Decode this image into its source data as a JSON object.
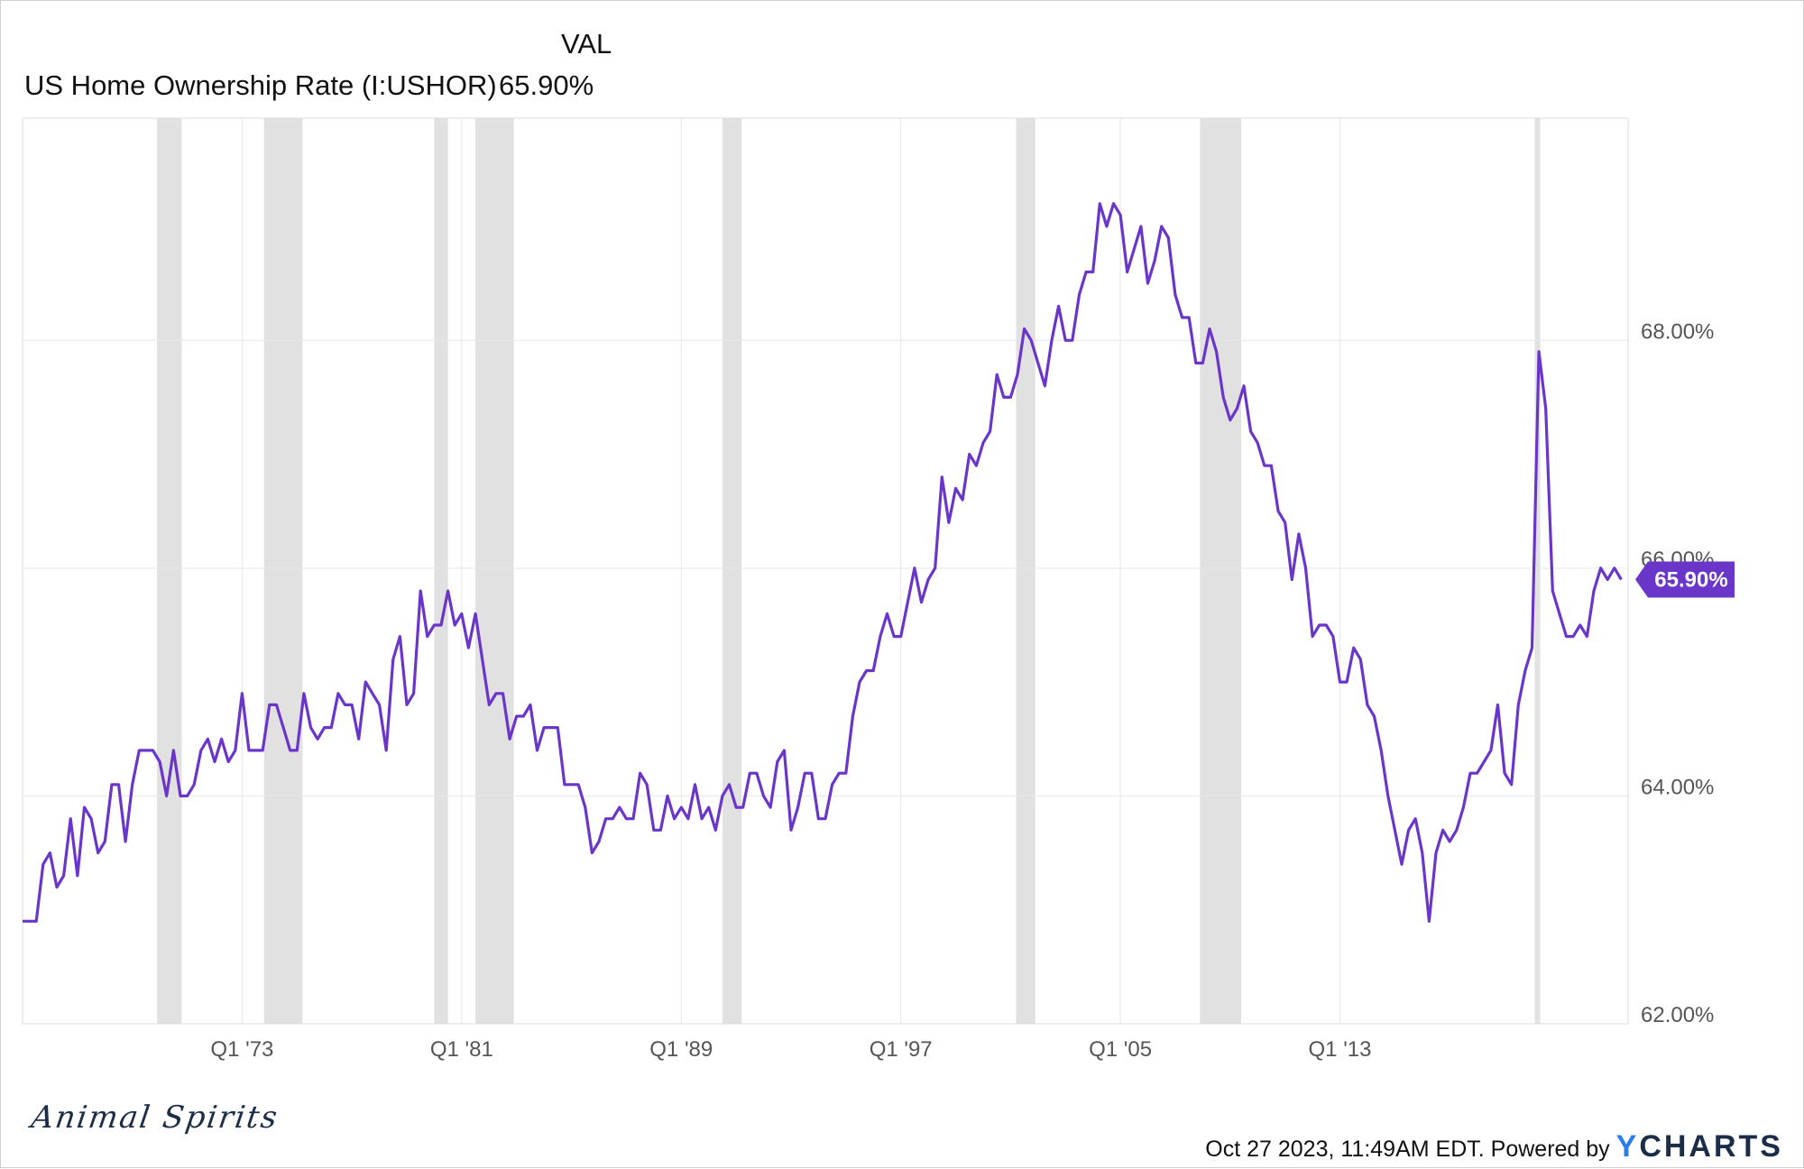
{
  "legend": {
    "header": "VAL",
    "series_label": "US Home Ownership Rate (I:USHOR)",
    "value": "65.90%"
  },
  "colors": {
    "line": "#6a35c9",
    "recession": "#e1e1e1",
    "grid": "#e7e7e7",
    "brand": "#1c2d48",
    "logo_accent": "#2b7de9"
  },
  "chart_data": {
    "type": "line",
    "title": "",
    "xlabel": "",
    "ylabel": "",
    "x_tick_labels": [
      "Q1 '73",
      "Q1 '81",
      "Q1 '89",
      "Q1 '97",
      "Q1 '05",
      "Q1 '13"
    ],
    "x_tick_years": [
      1973,
      1981,
      1989,
      1997,
      2005,
      2013
    ],
    "y_tick_labels": [
      "62.00%",
      "64.00%",
      "66.00%",
      "68.00%"
    ],
    "y_tick_values": [
      62,
      64,
      66,
      68
    ],
    "xlim": [
      1965.0,
      2023.5
    ],
    "ylim": [
      62.0,
      69.95
    ],
    "grid": true,
    "last_value_label": "65.90%",
    "recession_shading": [
      [
        1969.9,
        1970.8
      ],
      [
        1973.8,
        1975.2
      ],
      [
        1980.0,
        1980.5
      ],
      [
        1981.5,
        1982.9
      ],
      [
        1990.5,
        1991.2
      ],
      [
        2001.2,
        2001.9
      ],
      [
        2007.9,
        2009.4
      ],
      [
        2020.1,
        2020.3
      ]
    ],
    "series": [
      {
        "start": 1965.0,
        "step": 0.25,
        "values": [
          62.9,
          62.9,
          62.9,
          63.4,
          63.5,
          63.2,
          63.3,
          63.8,
          63.3,
          63.9,
          63.8,
          63.5,
          63.6,
          64.1,
          64.1,
          63.6,
          64.1,
          64.4,
          64.4,
          64.4,
          64.3,
          64.0,
          64.4,
          64.0,
          64.0,
          64.1,
          64.4,
          64.5,
          64.3,
          64.5,
          64.3,
          64.4,
          64.9,
          64.4,
          64.4,
          64.4,
          64.8,
          64.8,
          64.6,
          64.4,
          64.4,
          64.9,
          64.6,
          64.5,
          64.6,
          64.6,
          64.9,
          64.8,
          64.8,
          64.5,
          65.0,
          64.9,
          64.8,
          64.4,
          65.2,
          65.4,
          64.8,
          64.9,
          65.8,
          65.4,
          65.5,
          65.5,
          65.8,
          65.5,
          65.6,
          65.3,
          65.6,
          65.2,
          64.8,
          64.9,
          64.9,
          64.5,
          64.7,
          64.7,
          64.8,
          64.4,
          64.6,
          64.6,
          64.6,
          64.1,
          64.1,
          64.1,
          63.9,
          63.5,
          63.6,
          63.8,
          63.8,
          63.9,
          63.8,
          63.8,
          64.2,
          64.1,
          63.7,
          63.7,
          64.0,
          63.8,
          63.9,
          63.8,
          64.1,
          63.8,
          63.9,
          63.7,
          64.0,
          64.1,
          63.9,
          63.9,
          64.2,
          64.2,
          64.0,
          63.9,
          64.3,
          64.4,
          63.7,
          63.9,
          64.2,
          64.2,
          63.8,
          63.8,
          64.1,
          64.2,
          64.2,
          64.7,
          65.0,
          65.1,
          65.1,
          65.4,
          65.6,
          65.4,
          65.4,
          65.7,
          66.0,
          65.7,
          65.9,
          66.0,
          66.8,
          66.4,
          66.7,
          66.6,
          67.0,
          66.9,
          67.1,
          67.2,
          67.7,
          67.5,
          67.5,
          67.7,
          68.1,
          68.0,
          67.8,
          67.6,
          68.0,
          68.3,
          68.0,
          68.0,
          68.4,
          68.6,
          68.6,
          69.2,
          69.0,
          69.2,
          69.1,
          68.6,
          68.8,
          69.0,
          68.5,
          68.7,
          69.0,
          68.9,
          68.4,
          68.2,
          68.2,
          67.8,
          67.8,
          68.1,
          67.9,
          67.5,
          67.3,
          67.4,
          67.6,
          67.2,
          67.1,
          66.9,
          66.9,
          66.5,
          66.4,
          65.9,
          66.3,
          66.0,
          65.4,
          65.5,
          65.5,
          65.4,
          65.0,
          65.0,
          65.3,
          65.2,
          64.8,
          64.7,
          64.4,
          64.0,
          63.7,
          63.4,
          63.7,
          63.8,
          63.5,
          62.9,
          63.5,
          63.7,
          63.6,
          63.7,
          63.9,
          64.2,
          64.2,
          64.3,
          64.4,
          64.8,
          64.2,
          64.1,
          64.8,
          65.1,
          65.3,
          67.9,
          67.4,
          65.8,
          65.6,
          65.4,
          65.4,
          65.5,
          65.4,
          65.8,
          66.0,
          65.9,
          66.0,
          65.9
        ]
      }
    ]
  },
  "brand": "Animal Spirits",
  "footer": {
    "timestamp": "Oct 27 2023, 11:49AM EDT.",
    "powered": "Powered by",
    "logo_y": "Y",
    "logo_rest": "CHARTS"
  }
}
